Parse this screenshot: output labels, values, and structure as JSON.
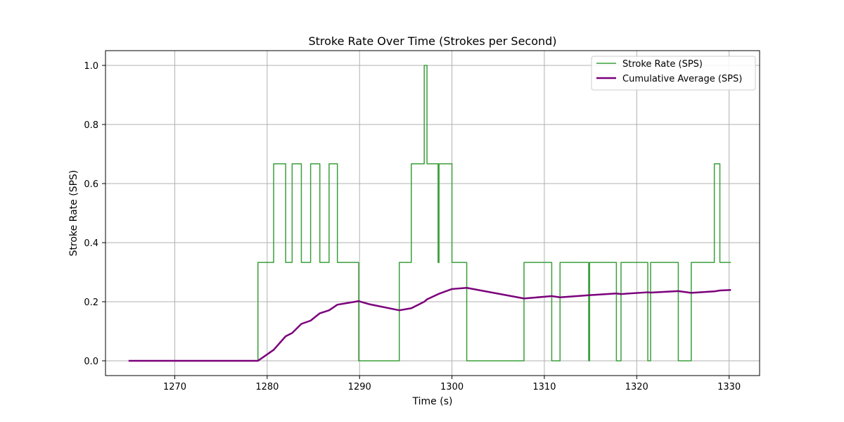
{
  "chart_data": {
    "type": "line",
    "title": "Stroke Rate Over Time (Strokes per Second)",
    "xlabel": "Time (s)",
    "ylabel": "Stroke Rate (SPS)",
    "xlim": [
      1262.5,
      1333.3
    ],
    "ylim": [
      -0.05,
      1.05
    ],
    "xticks": [
      1270,
      1280,
      1290,
      1300,
      1310,
      1320,
      1330
    ],
    "yticks": [
      0.0,
      0.2,
      0.4,
      0.6,
      0.8,
      1.0
    ],
    "xtick_labels": [
      "1270",
      "1280",
      "1290",
      "1300",
      "1310",
      "1320",
      "1330"
    ],
    "ytick_labels": [
      "0.0",
      "0.2",
      "0.4",
      "0.6",
      "0.8",
      "1.0"
    ],
    "grid": true,
    "legend_position": "top-right",
    "series": [
      {
        "name": "Stroke Rate (SPS)",
        "color": "#3a9f3a",
        "style": "step",
        "x": [
          1265.0,
          1279.0,
          1279.0,
          1280.7,
          1280.7,
          1282.0,
          1282.0,
          1282.7,
          1282.7,
          1283.7,
          1283.7,
          1284.7,
          1284.7,
          1285.7,
          1285.7,
          1286.7,
          1286.7,
          1287.6,
          1287.6,
          1289.9,
          1289.9,
          1294.3,
          1294.3,
          1295.6,
          1295.6,
          1297.0,
          1297.0,
          1297.3,
          1297.3,
          1298.5,
          1298.5,
          1298.6,
          1298.6,
          1300.0,
          1300.0,
          1301.6,
          1301.6,
          1307.8,
          1307.8,
          1310.8,
          1310.8,
          1311.7,
          1311.7,
          1314.8,
          1314.8,
          1314.9,
          1314.9,
          1317.8,
          1317.8,
          1318.3,
          1318.3,
          1321.2,
          1321.2,
          1321.5,
          1321.5,
          1324.5,
          1324.5,
          1325.9,
          1325.9,
          1328.4,
          1328.4,
          1329.0,
          1329.0,
          1330.2
        ],
        "y": [
          0.0,
          0.0,
          0.333,
          0.333,
          0.667,
          0.667,
          0.333,
          0.333,
          0.667,
          0.667,
          0.333,
          0.333,
          0.667,
          0.667,
          0.333,
          0.333,
          0.667,
          0.667,
          0.333,
          0.333,
          0.0,
          0.0,
          0.333,
          0.333,
          0.667,
          0.667,
          1.0,
          1.0,
          0.667,
          0.667,
          0.333,
          0.333,
          0.667,
          0.667,
          0.333,
          0.333,
          0.0,
          0.0,
          0.333,
          0.333,
          0.0,
          0.0,
          0.333,
          0.333,
          0.0,
          0.0,
          0.333,
          0.333,
          0.0,
          0.0,
          0.333,
          0.333,
          0.0,
          0.0,
          0.333,
          0.333,
          0.0,
          0.0,
          0.333,
          0.333,
          0.667,
          0.667,
          0.333,
          0.333
        ]
      },
      {
        "name": "Cumulative Average (SPS)",
        "color": "#7b007b",
        "style": "line",
        "x": [
          1265.0,
          1279.0,
          1280.7,
          1282.0,
          1282.7,
          1283.7,
          1284.7,
          1285.7,
          1286.7,
          1287.6,
          1289.9,
          1291.0,
          1294.3,
          1295.6,
          1297.0,
          1297.3,
          1298.6,
          1300.0,
          1301.6,
          1307.8,
          1310.8,
          1311.7,
          1314.8,
          1317.8,
          1318.3,
          1321.2,
          1321.5,
          1324.5,
          1325.9,
          1328.4,
          1329.0,
          1330.2
        ],
        "y": [
          0.0,
          0.0,
          0.037,
          0.083,
          0.094,
          0.125,
          0.136,
          0.161,
          0.171,
          0.19,
          0.202,
          0.192,
          0.171,
          0.178,
          0.2,
          0.208,
          0.227,
          0.243,
          0.247,
          0.211,
          0.219,
          0.215,
          0.222,
          0.228,
          0.226,
          0.232,
          0.231,
          0.236,
          0.23,
          0.235,
          0.238,
          0.24
        ]
      }
    ]
  }
}
